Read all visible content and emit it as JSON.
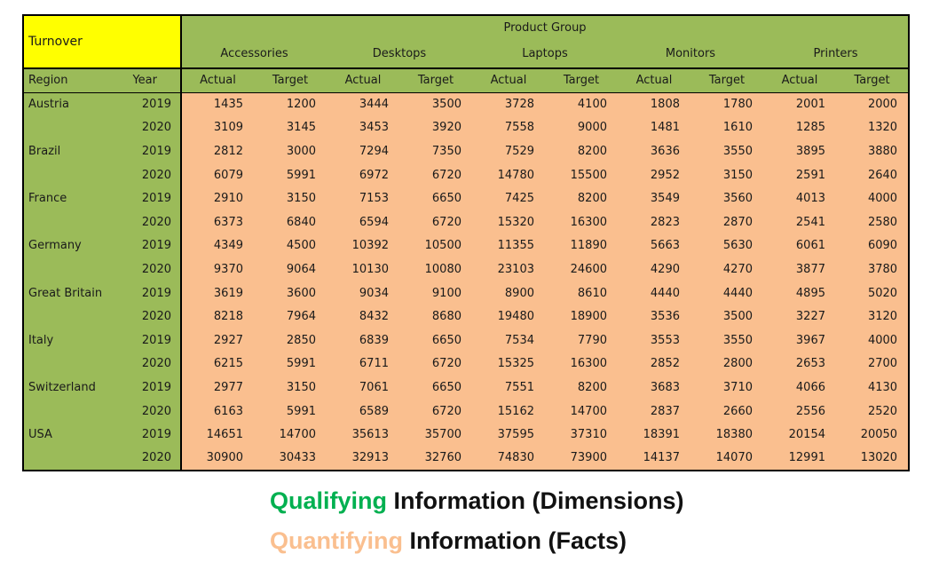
{
  "colors": {
    "header_green": "#9BBB59",
    "fact_fill": "#FABF8F",
    "corner_fill": "#FFFF00",
    "qualifying_green": "#00B050",
    "quantifying_peach": "#FABF8F",
    "border_black": "#000000"
  },
  "chart_data": {
    "type": "table",
    "title": "Turnover",
    "top_header": "Product Group",
    "region_header": "Region",
    "year_header": "Year",
    "product_groups": [
      "Accessories",
      "Desktops",
      "Laptops",
      "Monitors",
      "Printers"
    ],
    "measure_headers": [
      "Actual",
      "Target"
    ],
    "rows": [
      {
        "region": "Austria",
        "year": "2019",
        "values": [
          1435,
          1200,
          3444,
          3500,
          3728,
          4100,
          1808,
          1780,
          2001,
          2000
        ]
      },
      {
        "region": "",
        "year": "2020",
        "values": [
          3109,
          3145,
          3453,
          3920,
          7558,
          9000,
          1481,
          1610,
          1285,
          1320
        ]
      },
      {
        "region": "Brazil",
        "year": "2019",
        "values": [
          2812,
          3000,
          7294,
          7350,
          7529,
          8200,
          3636,
          3550,
          3895,
          3880
        ]
      },
      {
        "region": "",
        "year": "2020",
        "values": [
          6079,
          5991,
          6972,
          6720,
          14780,
          15500,
          2952,
          3150,
          2591,
          2640
        ]
      },
      {
        "region": "France",
        "year": "2019",
        "values": [
          2910,
          3150,
          7153,
          6650,
          7425,
          8200,
          3549,
          3560,
          4013,
          4000
        ]
      },
      {
        "region": "",
        "year": "2020",
        "values": [
          6373,
          6840,
          6594,
          6720,
          15320,
          16300,
          2823,
          2870,
          2541,
          2580
        ]
      },
      {
        "region": "Germany",
        "year": "2019",
        "values": [
          4349,
          4500,
          10392,
          10500,
          11355,
          11890,
          5663,
          5630,
          6061,
          6090
        ]
      },
      {
        "region": "",
        "year": "2020",
        "values": [
          9370,
          9064,
          10130,
          10080,
          23103,
          24600,
          4290,
          4270,
          3877,
          3780
        ]
      },
      {
        "region": "Great Britain",
        "year": "2019",
        "values": [
          3619,
          3600,
          9034,
          9100,
          8900,
          8610,
          4440,
          4440,
          4895,
          5020
        ]
      },
      {
        "region": "",
        "year": "2020",
        "values": [
          8218,
          7964,
          8432,
          8680,
          19480,
          18900,
          3536,
          3500,
          3227,
          3120
        ]
      },
      {
        "region": "Italy",
        "year": "2019",
        "values": [
          2927,
          2850,
          6839,
          6650,
          7534,
          7790,
          3553,
          3550,
          3967,
          4000
        ]
      },
      {
        "region": "",
        "year": "2020",
        "values": [
          6215,
          5991,
          6711,
          6720,
          15325,
          16300,
          2852,
          2800,
          2653,
          2700
        ]
      },
      {
        "region": "Switzerland",
        "year": "2019",
        "values": [
          2977,
          3150,
          7061,
          6650,
          7551,
          8200,
          3683,
          3710,
          4066,
          4130
        ]
      },
      {
        "region": "",
        "year": "2020",
        "values": [
          6163,
          5991,
          6589,
          6720,
          15162,
          14700,
          2837,
          2660,
          2556,
          2520
        ]
      },
      {
        "region": "USA",
        "year": "2019",
        "values": [
          14651,
          14700,
          35613,
          35700,
          37595,
          37310,
          18391,
          18380,
          20154,
          20050
        ]
      },
      {
        "region": "",
        "year": "2020",
        "values": [
          30900,
          30433,
          32913,
          32760,
          74830,
          73900,
          14137,
          14070,
          12991,
          13020
        ]
      }
    ]
  },
  "captions": [
    {
      "highlight": "Qualifying",
      "rest": " Information (Dimensions)",
      "color": "#00B050"
    },
    {
      "highlight": "Quantifying",
      "rest": " Information (Facts)",
      "color": "#FABF8F"
    }
  ]
}
